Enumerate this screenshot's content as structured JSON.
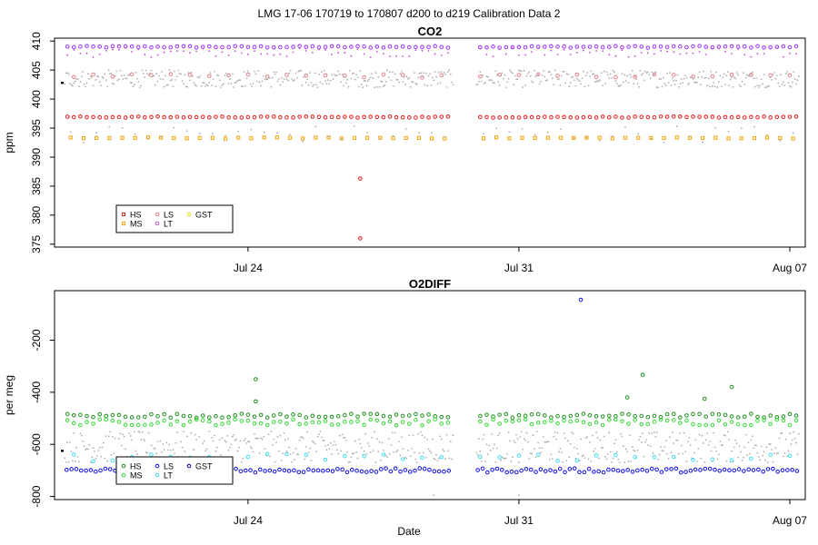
{
  "page": {
    "title": "LMG   17-06    170719 to 170807    d200 to d219   Calibration Data 2",
    "xlabel": "Date"
  },
  "colors": {
    "HS": "#e41a1c",
    "MS": "#f5a300",
    "LS": "#e87f8a",
    "LT": "#c050c8",
    "GST": "#e0e000",
    "cal_dense_top": "#9b30ff",
    "HS_o2": "#1f8f1f",
    "MS_o2": "#33dd33",
    "LS_o2": "#1010e0",
    "LT_o2": "#40e0f0",
    "GST_o2": "#0000a0",
    "ambient": "#b0b0b0"
  },
  "chart_data": [
    {
      "type": "scatter",
      "title": "CO2",
      "xlabel": "",
      "ylabel": "ppm",
      "xlim": [
        200.0,
        219.4
      ],
      "ylim": [
        374.5,
        410.5
      ],
      "yticks": [
        375,
        380,
        385,
        390,
        395,
        400,
        405,
        410
      ],
      "xticks": [
        {
          "x": 205,
          "label": "Jul 24"
        },
        {
          "x": 212,
          "label": "Jul 31"
        },
        {
          "x": 219,
          "label": "Aug 07"
        }
      ],
      "gap": [
        210.3,
        210.9
      ],
      "legend": {
        "position": "bottom-left",
        "entries": [
          {
            "label": "HS",
            "color": "#e41a1c",
            "shape": "square"
          },
          {
            "label": "MS",
            "color": "#f5a300",
            "shape": "square"
          },
          {
            "label": "LS",
            "color": "#e87f8a",
            "shape": "circle"
          },
          {
            "label": "LT",
            "color": "#c050c8",
            "shape": "circle"
          },
          {
            "label": "GST",
            "color": "#e0e000",
            "shape": "circle"
          }
        ]
      },
      "series": [
        {
          "color": "#9b30ff",
          "shape": "circle",
          "level": 409.0,
          "jitter": 0.15,
          "per_day": 6,
          "label": "",
          "legend": false
        },
        {
          "color": "#c050c8",
          "shape": "dot",
          "level": 408.0,
          "jitter": 0.8,
          "per_day": 6
        },
        {
          "color": "#e87f8a",
          "shape": "circle",
          "level": 404.0,
          "jitter": 0.3,
          "per_day": 2
        },
        {
          "color": "#b0b0b0",
          "shape": "dot",
          "level": 403.5,
          "jitter": 1.5,
          "per_day": 30
        },
        {
          "color": "#e41a1c",
          "shape": "circle",
          "level": 396.9,
          "jitter": 0.1,
          "per_day": 6
        },
        {
          "color": "#f5a300",
          "shape": "square",
          "level": 393.3,
          "jitter": 0.1,
          "per_day": 3
        },
        {
          "color": "#b0b0b0",
          "shape": "dot",
          "level": 394.0,
          "jitter": 1.5,
          "per_day": 3
        }
      ],
      "points": [
        {
          "x": 207.9,
          "y": 386.3,
          "color": "#e41a1c",
          "shape": "circle"
        },
        {
          "x": 207.9,
          "y": 376.0,
          "color": "#e41a1c",
          "shape": "circle"
        },
        {
          "x": 200.2,
          "y": 402.8,
          "color": "#000000",
          "shape": "square"
        }
      ]
    },
    {
      "type": "scatter",
      "title": "O2DIFF",
      "xlabel": "Date",
      "ylabel": "per meg",
      "xlim": [
        200.0,
        219.4
      ],
      "ylim": [
        -812,
        -10
      ],
      "yticks": [
        -800,
        -600,
        -400,
        -200
      ],
      "xticks": [
        {
          "x": 205,
          "label": "Jul 24"
        },
        {
          "x": 212,
          "label": "Jul 31"
        },
        {
          "x": 219,
          "label": "Aug 07"
        }
      ],
      "gap": [
        210.3,
        210.9
      ],
      "legend": {
        "position": "bottom-left",
        "entries": [
          {
            "label": "HS",
            "color": "#1f8f1f",
            "shape": "circle"
          },
          {
            "label": "MS",
            "color": "#33dd33",
            "shape": "circle"
          },
          {
            "label": "LS",
            "color": "#1010e0",
            "shape": "circle"
          },
          {
            "label": "LT",
            "color": "#40e0f0",
            "shape": "circle"
          },
          {
            "label": "GST",
            "color": "#0000a0",
            "shape": "circle"
          }
        ]
      },
      "series": [
        {
          "color": "#1f8f1f",
          "shape": "circle",
          "level": -490,
          "jitter": 8,
          "per_day": 6
        },
        {
          "color": "#33dd33",
          "shape": "circle",
          "level": -515,
          "jitter": 12,
          "per_day": 6
        },
        {
          "color": "#b0b0b0",
          "shape": "dot",
          "level": -610,
          "jitter": 60,
          "per_day": 30
        },
        {
          "color": "#40e0f0",
          "shape": "circle",
          "level": -650,
          "jitter": 15,
          "per_day": 2
        },
        {
          "color": "#1010e0",
          "shape": "circle",
          "level": -700,
          "jitter": 8,
          "per_day": 8
        }
      ],
      "points": [
        {
          "x": 205.2,
          "y": -350,
          "color": "#1f8f1f",
          "shape": "circle"
        },
        {
          "x": 205.2,
          "y": -435,
          "color": "#1f8f1f",
          "shape": "circle"
        },
        {
          "x": 213.6,
          "y": -45,
          "color": "#1010e0",
          "shape": "circle"
        },
        {
          "x": 215.2,
          "y": -333,
          "color": "#1f8f1f",
          "shape": "circle"
        },
        {
          "x": 214.8,
          "y": -420,
          "color": "#1f8f1f",
          "shape": "circle"
        },
        {
          "x": 217.5,
          "y": -380,
          "color": "#1f8f1f",
          "shape": "circle"
        },
        {
          "x": 216.8,
          "y": -425,
          "color": "#1f8f1f",
          "shape": "circle"
        },
        {
          "x": 200.2,
          "y": -625,
          "color": "#000000",
          "shape": "square"
        },
        {
          "x": 212.0,
          "y": -795,
          "color": "#b0b0b0",
          "shape": "dot"
        },
        {
          "x": 209.8,
          "y": -795,
          "color": "#b0b0b0",
          "shape": "dot"
        }
      ]
    }
  ]
}
